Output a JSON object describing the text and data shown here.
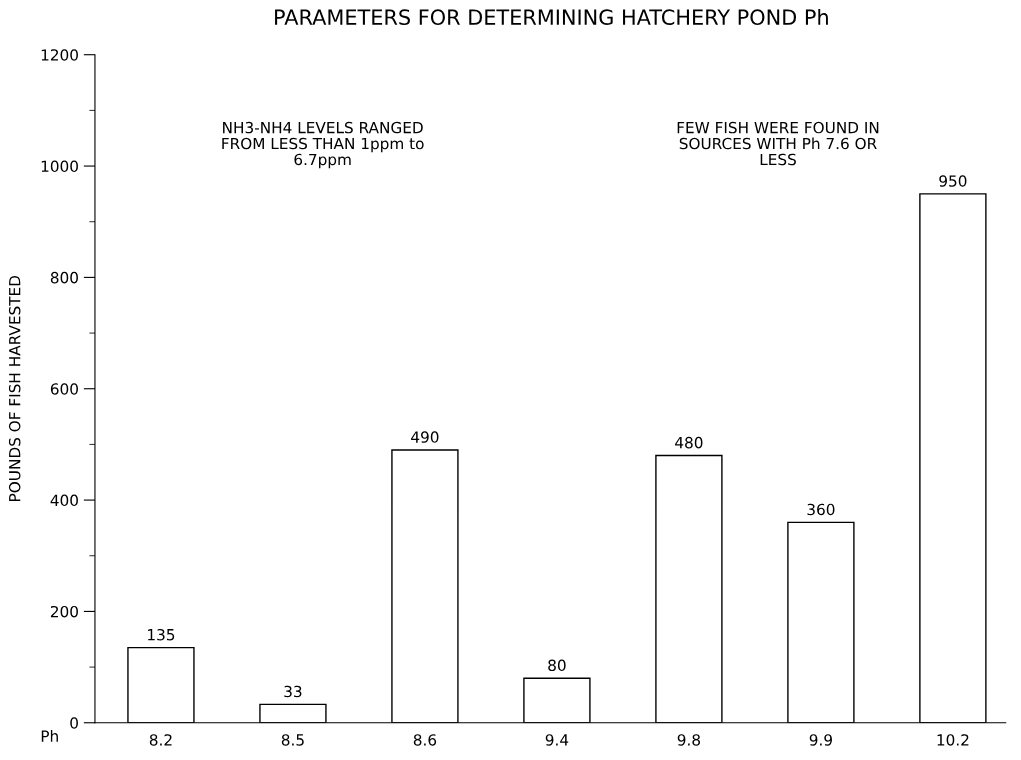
{
  "chart_data": {
    "type": "bar",
    "title": "PARAMETERS FOR DETERMINING HATCHERY POND Ph",
    "xlabel": "Ph",
    "ylabel": "POUNDS OF FISH HARVESTED",
    "categories": [
      "8.2",
      "8.5",
      "8.6",
      "9.4",
      "9.8",
      "9.9",
      "10.2"
    ],
    "values": [
      135,
      33,
      490,
      80,
      480,
      360,
      950
    ],
    "color": "#ffffff",
    "ylim": [
      0,
      1200
    ],
    "yticks": [
      0,
      200,
      400,
      600,
      800,
      1000,
      1200
    ],
    "data_labels": true,
    "grid": false,
    "annotations": [
      "NH3-NH4 LEVELS RANGED\nFROM LESS THAN 1ppm to\n6.7ppm",
      "FEW FISH WERE FOUND IN\nSOURCES WITH Ph 7.6 OR\nLESS"
    ]
  }
}
